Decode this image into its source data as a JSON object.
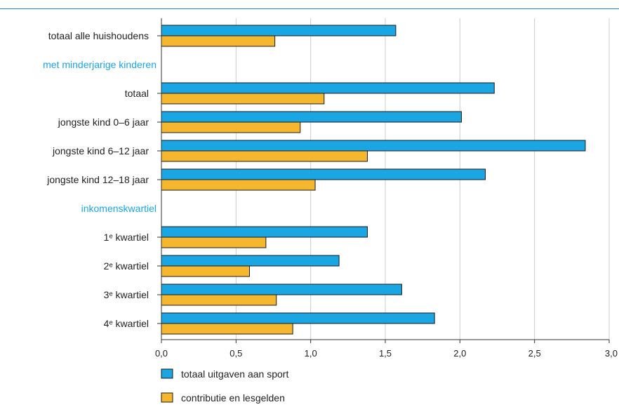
{
  "chart_data": {
    "type": "bar",
    "orientation": "horizontal",
    "rows": [
      {
        "kind": "category",
        "label": "totaal alle huishoudens",
        "values": [
          1.57,
          0.76
        ]
      },
      {
        "kind": "group",
        "label": "met minderjarige kinderen"
      },
      {
        "kind": "category",
        "label": "totaal",
        "values": [
          2.23,
          1.09
        ]
      },
      {
        "kind": "category",
        "label": "jongste kind 0–6 jaar",
        "values": [
          2.01,
          0.93
        ]
      },
      {
        "kind": "category",
        "label": "jongste kind 6–12 jaar",
        "values": [
          2.84,
          1.38
        ]
      },
      {
        "kind": "category",
        "label": "jongste kind 12–18 jaar",
        "values": [
          2.17,
          1.03
        ]
      },
      {
        "kind": "group",
        "label": "inkomenskwartiel"
      },
      {
        "kind": "category",
        "label": "1ᵉ kwartiel",
        "values": [
          1.38,
          0.7
        ]
      },
      {
        "kind": "category",
        "label": "2ᵉ kwartiel",
        "values": [
          1.19,
          0.59
        ]
      },
      {
        "kind": "category",
        "label": "3ᵉ kwartiel",
        "values": [
          1.61,
          0.77
        ]
      },
      {
        "kind": "category",
        "label": "4ᵉ kwartiel",
        "values": [
          1.83,
          0.88
        ]
      }
    ],
    "series": [
      {
        "name": "totaal uitgaven aan sport",
        "color": "#1aa6e3"
      },
      {
        "name": "contributie en lesgelden",
        "color": "#f5b72d"
      }
    ],
    "xlim": [
      0,
      3.0
    ],
    "xticks": [
      "0,0",
      "0,5",
      "1,0",
      "1,5",
      "2,0",
      "2,5",
      "3,0"
    ],
    "xtick_values": [
      0,
      0.5,
      1.0,
      1.5,
      2.0,
      2.5,
      3.0
    ],
    "grid": true,
    "legend_position": "bottom-left",
    "colors": {
      "group_label": "#1aa6e3",
      "grid": "#cccccc",
      "axis": "#333333",
      "rule": "#2a82c2"
    }
  }
}
